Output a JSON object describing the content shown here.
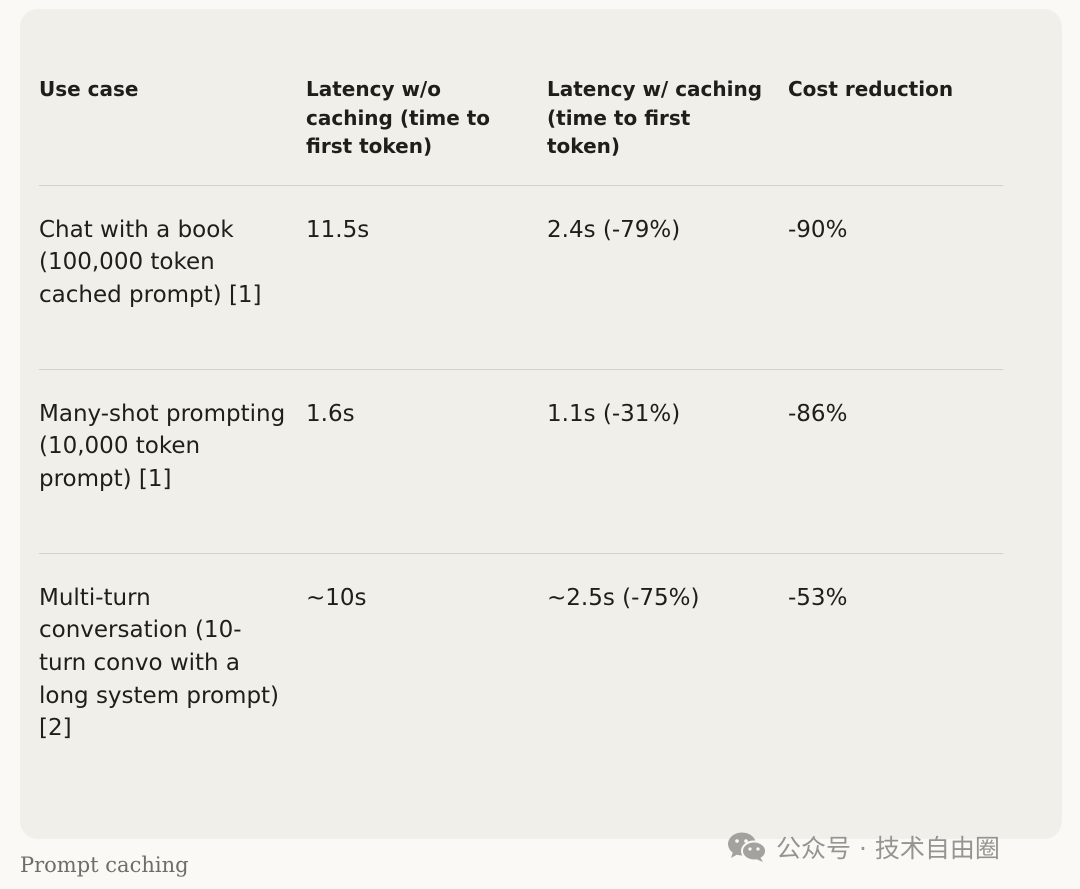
{
  "table": {
    "headers": [
      "Use case",
      "Latency w/o caching (time to first token)",
      "Latency w/ caching (time to first token)",
      "Cost reduction"
    ],
    "rows": [
      {
        "use_case": "Chat with a book (100,000 token cached prompt) [1]",
        "latency_without": "11.5s",
        "latency_with": "2.4s (-79%)",
        "cost_reduction": "-90%"
      },
      {
        "use_case": "Many-shot prompting (10,000 token prompt) [1]",
        "latency_without": "1.6s",
        "latency_with": "1.1s (-31%)",
        "cost_reduction": "-86%"
      },
      {
        "use_case": "Multi-turn conversation (10-turn convo with a long system prompt) [2]",
        "latency_without": "~10s",
        "latency_with": "~2.5s (-75%)",
        "cost_reduction": "-53%"
      }
    ]
  },
  "caption": "Prompt caching",
  "watermark": {
    "icon": "wechat-icon",
    "text": "公众号 · 技术自由圈"
  },
  "colors": {
    "page_background": "#faf9f5",
    "card_background": "#f0efe9",
    "text": "#1f1e1b",
    "divider": "#d3d1c9",
    "caption": "#6e6d68"
  }
}
